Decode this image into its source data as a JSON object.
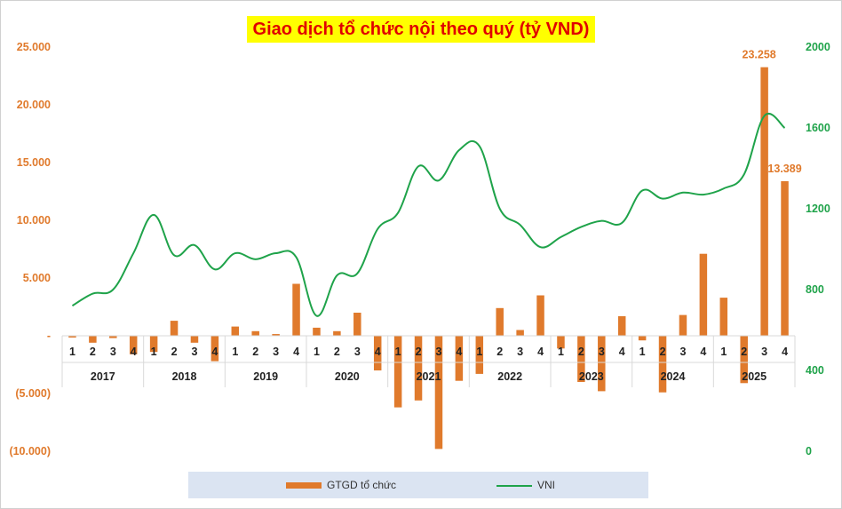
{
  "chart_data": {
    "type": "bar+line",
    "title": "Giao dịch tổ chức nội theo quý (tỷ VND)",
    "years": [
      "2017",
      "2018",
      "2019",
      "2020",
      "2021",
      "2022",
      "2023",
      "2024",
      "2025"
    ],
    "quarters": [
      "1",
      "2",
      "3",
      "4"
    ],
    "left_axis": {
      "ylim": [
        -10000,
        25000
      ],
      "ticks": [
        25000,
        20000,
        15000,
        10000,
        5000,
        0,
        -5000,
        -10000
      ],
      "tick_labels": [
        "25.000",
        "20.000",
        "15.000",
        "10.000",
        "5.000",
        "-",
        "(5.000)",
        "(10.000)"
      ]
    },
    "right_axis": {
      "ylim": [
        0,
        2000
      ],
      "ticks": [
        2000,
        1600,
        1200,
        800,
        400,
        0
      ],
      "tick_labels": [
        "2000",
        "1600",
        "1200",
        "800",
        "400",
        "0"
      ]
    },
    "series": [
      {
        "name": "GTGD tổ chức",
        "type": "bar",
        "color": "#e07a2c",
        "values": [
          -150,
          -600,
          -200,
          -1600,
          -1400,
          1300,
          -600,
          -2200,
          800,
          400,
          150,
          4500,
          700,
          400,
          2000,
          -3000,
          -6200,
          -5600,
          -9800,
          -3900,
          -3300,
          2400,
          500,
          3500,
          -1100,
          -4000,
          -4800,
          1700,
          -400,
          -4900,
          1800,
          7100,
          3300,
          -4100,
          23258,
          13389
        ]
      },
      {
        "name": "VNI",
        "type": "line",
        "color": "#1fa34a",
        "values": [
          720,
          780,
          800,
          980,
          1170,
          970,
          1020,
          900,
          980,
          950,
          980,
          960,
          670,
          870,
          880,
          1100,
          1180,
          1410,
          1340,
          1490,
          1510,
          1200,
          1120,
          1010,
          1060,
          1110,
          1140,
          1130,
          1290,
          1250,
          1280,
          1270,
          1300,
          1370,
          1660,
          1600
        ]
      }
    ],
    "data_labels": [
      {
        "series": 0,
        "index": 34,
        "text": "23.258"
      },
      {
        "series": 0,
        "index": 35,
        "text": "13.389"
      }
    ],
    "legend": [
      "GTGD tổ chức",
      "VNI"
    ],
    "legend_position": "bottom"
  }
}
